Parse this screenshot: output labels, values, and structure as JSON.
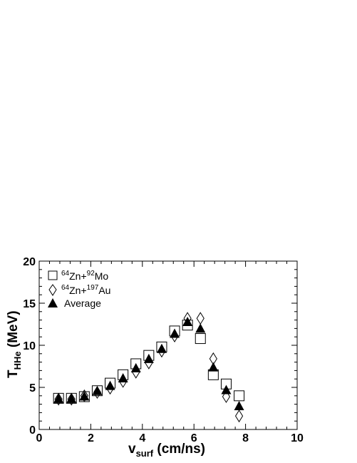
{
  "chart_data": {
    "type": "scatter",
    "xlabel": {
      "main": "v",
      "sub": "surf",
      "unit": " (cm/ns)"
    },
    "ylabel": {
      "main": "T",
      "sub": "HHe",
      "unit": " (MeV)"
    },
    "xlim": [
      0,
      10
    ],
    "ylim": [
      0,
      20
    ],
    "x_ticks": [
      "0",
      "2",
      "4",
      "6",
      "8",
      "10"
    ],
    "y_ticks": [
      "0",
      "5",
      "10",
      "15",
      "20"
    ],
    "grid": false,
    "legend_position": "top-left",
    "series": [
      {
        "name": "64Zn+92Mo",
        "legend": {
          "a_sup": "64",
          "a": "Zn+",
          "b_sup": "92",
          "b": "Mo"
        },
        "marker": "open-square",
        "color": "#000000",
        "points": [
          [
            0.75,
            3.7
          ],
          [
            1.25,
            3.7
          ],
          [
            1.75,
            3.9
          ],
          [
            2.25,
            4.6
          ],
          [
            2.75,
            5.5
          ],
          [
            3.25,
            6.5
          ],
          [
            3.75,
            7.8
          ],
          [
            4.25,
            8.8
          ],
          [
            4.75,
            9.8
          ],
          [
            5.25,
            11.7
          ],
          [
            5.75,
            12.4
          ],
          [
            6.25,
            10.8
          ],
          [
            6.75,
            6.5
          ],
          [
            7.25,
            5.4
          ],
          [
            7.75,
            4.0
          ]
        ]
      },
      {
        "name": "64Zn+197Au",
        "legend": {
          "a_sup": "64",
          "a": "Zn+",
          "b_sup": "197",
          "b": "Au"
        },
        "marker": "open-diamond",
        "color": "#000000",
        "points": [
          [
            0.75,
            3.6
          ],
          [
            1.25,
            3.6
          ],
          [
            1.75,
            4.0
          ],
          [
            2.25,
            4.4
          ],
          [
            2.75,
            4.9
          ],
          [
            3.25,
            5.7
          ],
          [
            3.75,
            6.8
          ],
          [
            4.25,
            7.9
          ],
          [
            4.75,
            9.3
          ],
          [
            5.25,
            11.1
          ],
          [
            5.75,
            13.2
          ],
          [
            6.25,
            13.2
          ],
          [
            6.75,
            8.4
          ],
          [
            7.25,
            3.9
          ],
          [
            7.75,
            1.6
          ]
        ]
      },
      {
        "name": "Average",
        "legend": {
          "a_sup": "",
          "a": "Average",
          "b_sup": "",
          "b": ""
        },
        "marker": "filled-triangle",
        "color": "#000000",
        "points": [
          [
            0.75,
            3.65
          ],
          [
            1.25,
            3.65
          ],
          [
            1.75,
            3.95
          ],
          [
            2.25,
            4.6
          ],
          [
            2.75,
            5.2
          ],
          [
            3.25,
            6.1
          ],
          [
            3.75,
            7.3
          ],
          [
            4.25,
            8.4
          ],
          [
            4.75,
            9.6
          ],
          [
            5.25,
            11.4
          ],
          [
            5.75,
            12.8
          ],
          [
            6.25,
            12.0
          ],
          [
            6.75,
            7.4
          ],
          [
            7.25,
            4.7
          ],
          [
            7.75,
            2.8
          ]
        ]
      }
    ]
  }
}
